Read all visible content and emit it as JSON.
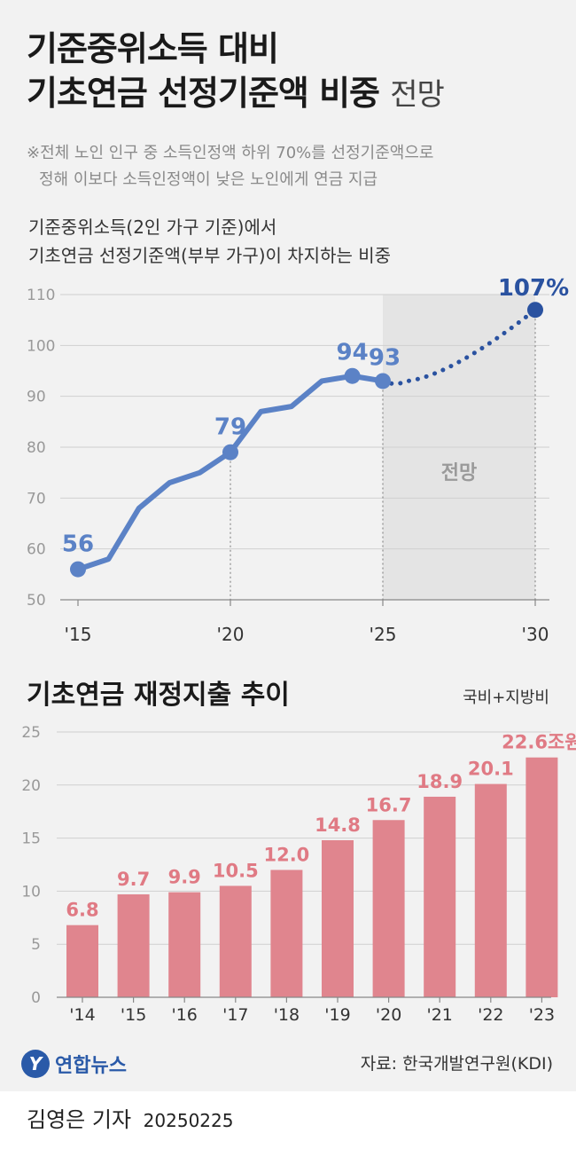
{
  "header": {
    "title_line1": "기준중위소득 대비",
    "title_line2": "기초연금 선정기준액 비중",
    "title_suffix": "전망",
    "note_line1": "※전체 노인 인구 중 소득인정액 하위 70%를 선정기준액으로",
    "note_line2": "정해 이보다 소득인정액이 낮은 노인에게 연금 지급"
  },
  "chart1_subtitle": {
    "line1": "기준중위소득(2인 가구 기준)에서",
    "line2": "기초연금 선정기준액(부부 가구)이 차지하는 비중"
  },
  "chart2_header": {
    "title": "기초연금 재정지출 추이",
    "unit": "국비+지방비"
  },
  "chart_data": [
    {
      "type": "line",
      "ylim": [
        50,
        110
      ],
      "yticks": [
        "50",
        "60",
        "70",
        "80",
        "90",
        "100",
        "110"
      ],
      "xticks": [
        "'15",
        "'20",
        "'25",
        "'30"
      ],
      "forecast_label": "전망",
      "x": [
        2015,
        2016,
        2017,
        2018,
        2019,
        2020,
        2021,
        2022,
        2023,
        2024,
        2025
      ],
      "values": [
        56,
        58,
        68,
        73,
        75,
        79,
        87,
        88,
        93,
        94,
        93
      ],
      "forecast_x": [
        2025,
        2025.8,
        2030
      ],
      "forecast_values": [
        93,
        93,
        107
      ],
      "labels": [
        {
          "x": 2015,
          "value": 56,
          "text": "56"
        },
        {
          "x": 2020,
          "value": 79,
          "text": "79"
        },
        {
          "x": 2024,
          "value": 94,
          "text": "94"
        },
        {
          "x": 2025,
          "value": 93,
          "text": "93"
        },
        {
          "x": 2030,
          "value": 107,
          "text": "107%"
        }
      ],
      "colors": {
        "line": "#5b82c6",
        "forecast": "#2a52a0",
        "shade": "#e4e4e4"
      }
    },
    {
      "type": "bar",
      "ylim": [
        0,
        25
      ],
      "yticks": [
        "0",
        "5",
        "10",
        "15",
        "20",
        "25"
      ],
      "categories": [
        "'14",
        "'15",
        "'16",
        "'17",
        "'18",
        "'19",
        "'20",
        "'21",
        "'22",
        "'23"
      ],
      "values": [
        6.8,
        9.7,
        9.9,
        10.5,
        12.0,
        14.8,
        16.7,
        18.9,
        20.1,
        22.6
      ],
      "value_labels": [
        "6.8",
        "9.7",
        "9.9",
        "10.5",
        "12.0",
        "14.8",
        "16.7",
        "18.9",
        "20.1",
        "22.6조원"
      ],
      "colors": {
        "bar": "#e0858e",
        "label": "#e07a84"
      }
    }
  ],
  "footer": {
    "logo_text": "연합뉴스",
    "source": "자료: 한국개발연구원(KDI)",
    "reporter": "김영은 기자",
    "date": "20250225"
  }
}
